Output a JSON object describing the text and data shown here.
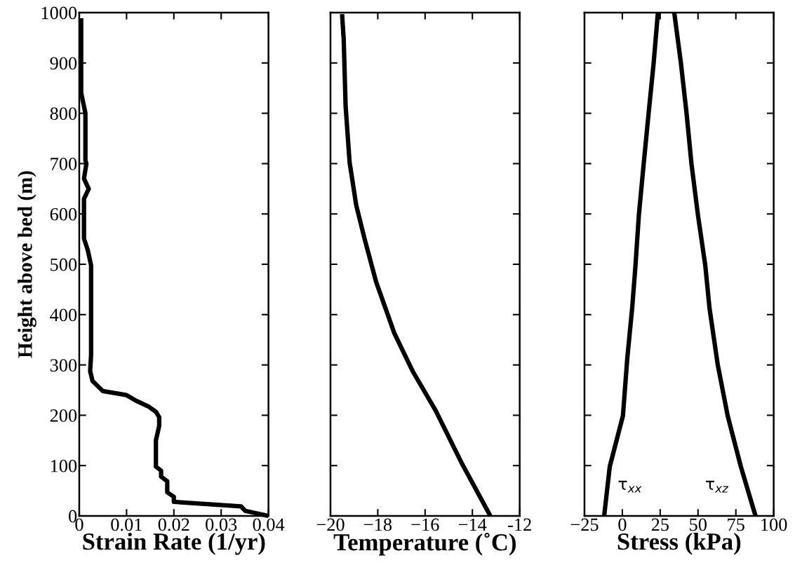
{
  "chart_data": [
    {
      "type": "line",
      "xlabel": "Strain Rate (1/yr)",
      "ylabel": "Height above bed (m)",
      "xlim": [
        0,
        0.04
      ],
      "xticks": [
        0,
        0.01,
        0.02,
        0.03,
        0.04
      ],
      "ylim": [
        0,
        1000
      ],
      "yticks": [
        0,
        100,
        200,
        300,
        400,
        500,
        600,
        700,
        800,
        900,
        1000
      ],
      "grid": false,
      "series": [
        {
          "color": "#000000",
          "x": [
            0.0004,
            0.0004,
            0.0013,
            0.0013,
            0.0015,
            0.001,
            0.002,
            0.001,
            0.001,
            0.0018,
            0.0025,
            0.0025,
            0.0023,
            0.0028,
            0.005,
            0.01,
            0.012,
            0.0147,
            0.0162,
            0.0169,
            0.0169,
            0.0162,
            0.0162,
            0.0173,
            0.0173,
            0.0186,
            0.0186,
            0.02,
            0.02,
            0.0342,
            0.0351,
            0.04
          ],
          "values": [
            989,
            841,
            800,
            706,
            700,
            670,
            650,
            630,
            551,
            528,
            498,
            320,
            288,
            268,
            248,
            240,
            229,
            217,
            207,
            196,
            179,
            150,
            98,
            90,
            78,
            69,
            47,
            38,
            28,
            19,
            10,
            0
          ]
        }
      ]
    },
    {
      "type": "line",
      "xlabel": "Temperature (˚C)",
      "xlim": [
        -20,
        -12
      ],
      "xticks": [
        {
          "value": -20,
          "label": "−20"
        },
        {
          "value": -18,
          "label": "−18"
        },
        {
          "value": -16,
          "label": "−16"
        },
        {
          "value": -14,
          "label": "−14"
        },
        -12
      ],
      "ylim": [
        0,
        1000
      ],
      "yticks": [
        0,
        100,
        200,
        300,
        400,
        500,
        600,
        700,
        800,
        900,
        1000
      ],
      "tick_labels": "x",
      "grid": false,
      "series": [
        {
          "color": "#000000",
          "x": [
            -19.51,
            -19.44,
            -19.36,
            -19.19,
            -18.91,
            -18.56,
            -18.07,
            -17.3,
            -16.53,
            -15.55,
            -14.43,
            -13.24
          ],
          "values": [
            997,
            946,
            814,
            702,
            617,
            551,
            465,
            363,
            288,
            209,
            103,
            0
          ]
        }
      ]
    },
    {
      "type": "line",
      "xlabel": "Stress (kPa)",
      "xlim": [
        -25,
        100
      ],
      "xticks": [
        {
          "value": -25,
          "label": "−25"
        },
        0,
        25,
        50,
        75,
        100
      ],
      "ylim": [
        0,
        1000
      ],
      "yticks": [
        0,
        100,
        200,
        300,
        400,
        500,
        600,
        700,
        800,
        900,
        1000
      ],
      "tick_labels": "x",
      "grid": false,
      "annotations": [
        "τ$_{xx}$",
        "τ$_{xz}$"
      ],
      "series": [
        {
          "color": "#000000",
          "x": [
            -12.0,
            -8.3,
            0.4,
            3.3,
            6.5,
            8.7,
            10.9,
            14.1,
            17.4,
            20.7,
            23.5
          ],
          "values": [
            0,
            98,
            199,
            314,
            413,
            498,
            597,
            699,
            801,
            900,
            1000
          ]
        },
        {
          "color": "#000000",
          "x": [
            88.0,
            78.3,
            69.6,
            63.0,
            57.6,
            54.8,
            50.0,
            45.7,
            42.4,
            38.7,
            34.3
          ],
          "values": [
            0,
            98,
            199,
            301,
            413,
            498,
            597,
            699,
            801,
            900,
            1000
          ]
        }
      ]
    }
  ]
}
